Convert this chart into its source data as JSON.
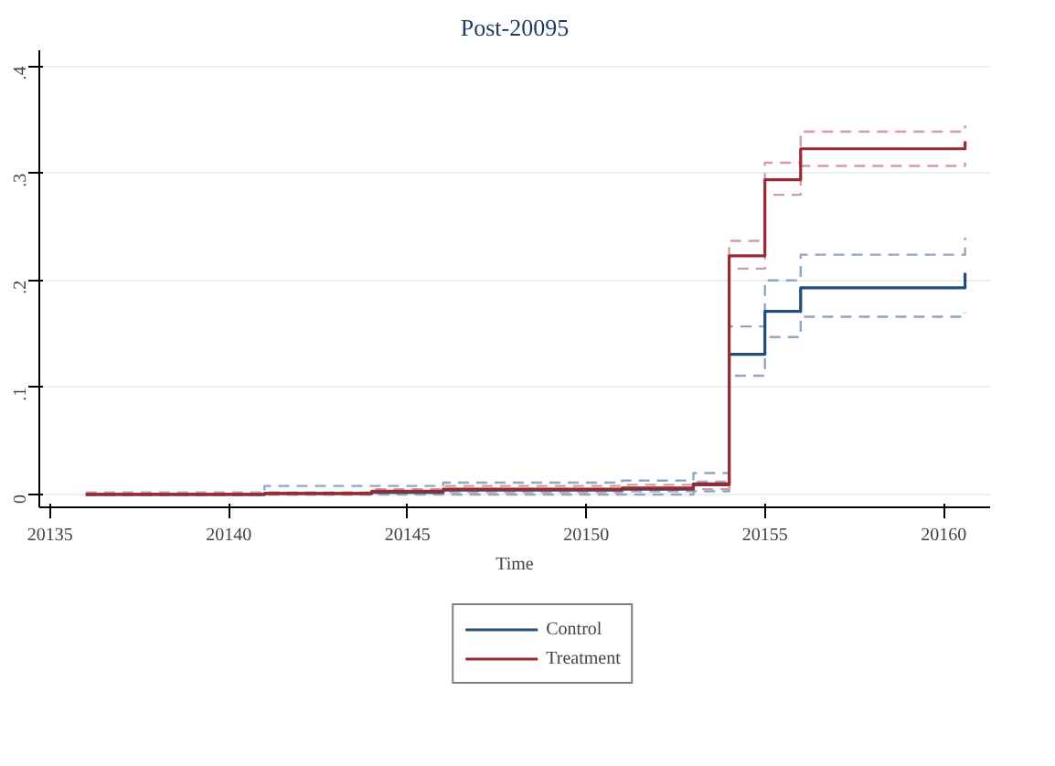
{
  "chart_data": {
    "type": "step",
    "title": "Post-20095",
    "xlabel": "Time",
    "xlim": [
      20134.7,
      20161.3
    ],
    "xticks": [
      20135,
      20140,
      20145,
      20150,
      20155,
      20160
    ],
    "ylim": [
      -0.012,
      0.415
    ],
    "yticks": [
      0,
      {
        "value": 0.1,
        "label": ".1"
      },
      {
        "value": 0.2,
        "label": ".2"
      },
      {
        "value": 0.3,
        "label": ".3"
      },
      {
        "value": 0.4,
        "label": ".4"
      }
    ],
    "grid": "y",
    "legend": "bottom",
    "marker": "none",
    "x": [
      20136,
      20141,
      20144,
      20146,
      20151,
      20153,
      20154,
      20155,
      20156,
      20160.6
    ],
    "series": [
      {
        "name": "Control",
        "color": "#1f4e7a",
        "values": [
          0,
          0.001,
          0.002,
          0.004,
          0.005,
          0.01,
          0.131,
          0.171,
          0.193,
          0.207
        ]
      },
      {
        "name": "Treatment",
        "color": "#9b2a2f",
        "values": [
          0,
          0.001,
          0.003,
          0.005,
          0.006,
          0.009,
          0.223,
          0.294,
          0.323,
          0.33
        ]
      },
      {
        "color": "#8fa7c2",
        "line_style": "dashed",
        "values": [
          0,
          0,
          0,
          0,
          0,
          0.003,
          0.111,
          0.147,
          0.166,
          0.17
        ]
      },
      {
        "color": "#8fa7c2",
        "line_style": "dashed",
        "values": [
          0,
          0.008,
          0.008,
          0.011,
          0.013,
          0.02,
          0.157,
          0.2,
          0.224,
          0.24
        ]
      },
      {
        "color": "#d39ca0",
        "line_style": "dashed",
        "values": [
          0,
          0,
          0.001,
          0.002,
          0.003,
          0.005,
          0.211,
          0.28,
          0.307,
          0.31
        ]
      },
      {
        "color": "#d39ca0",
        "line_style": "dashed",
        "values": [
          0.002,
          0.002,
          0.005,
          0.008,
          0.009,
          0.012,
          0.237,
          0.31,
          0.339,
          0.345
        ]
      }
    ]
  }
}
